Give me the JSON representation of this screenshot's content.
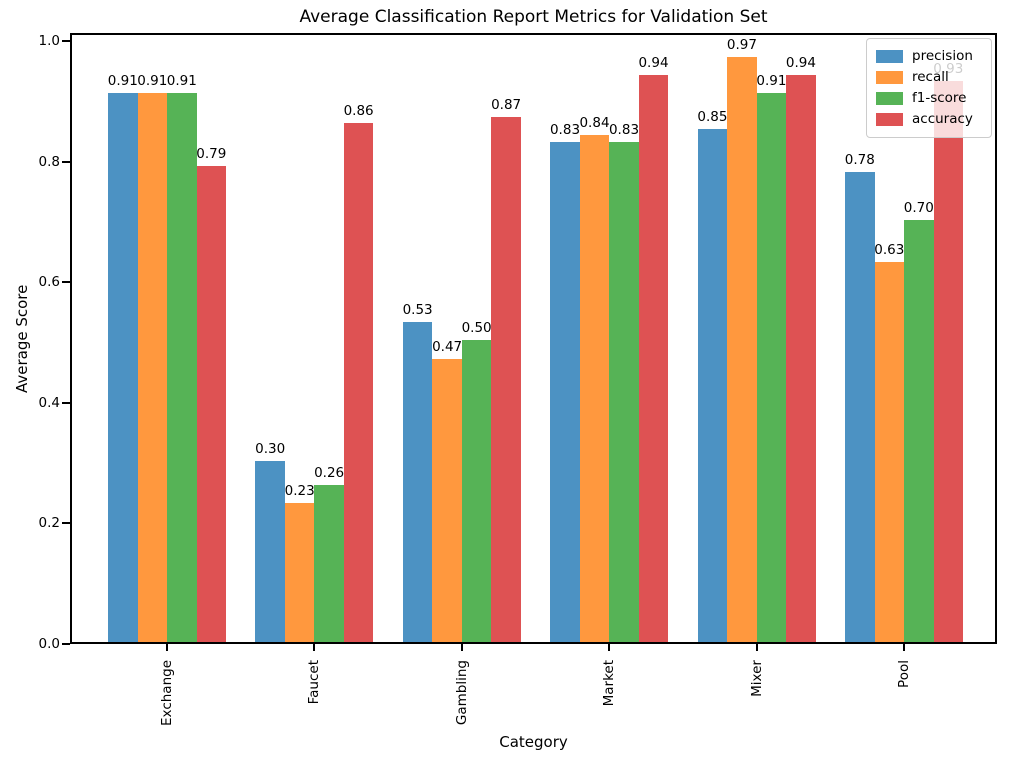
{
  "chart_data": {
    "type": "bar",
    "title": "Average Classification Report Metrics for Validation Set",
    "xlabel": "Category",
    "ylabel": "Average Score",
    "categories": [
      "Exchange",
      "Faucet",
      "Gambling",
      "Market",
      "Mixer",
      "Pool"
    ],
    "series": [
      {
        "name": "precision",
        "color": "#4C92C3",
        "values": [
          0.91,
          0.3,
          0.53,
          0.83,
          0.85,
          0.78
        ]
      },
      {
        "name": "recall",
        "color": "#FF983E",
        "values": [
          0.91,
          0.23,
          0.47,
          0.84,
          0.97,
          0.63
        ]
      },
      {
        "name": "f1-score",
        "color": "#56B356",
        "values": [
          0.91,
          0.26,
          0.5,
          0.83,
          0.91,
          0.7
        ]
      },
      {
        "name": "accuracy",
        "color": "#DE5253",
        "values": [
          0.79,
          0.86,
          0.87,
          0.94,
          0.94,
          0.93
        ]
      }
    ],
    "bar_value_labels": [
      [
        "0.91",
        "0.30",
        "0.53",
        "0.83",
        "0.85",
        "0.78"
      ],
      [
        "0.91",
        "0.23",
        "0.47",
        "0.84",
        "0.97",
        "0.63"
      ],
      [
        "0.91",
        "0.26",
        "0.50",
        "0.83",
        "0.91",
        "0.70"
      ],
      [
        "0.79",
        "0.86",
        "0.87",
        "0.94",
        "0.94",
        "0.93"
      ]
    ],
    "yticks": [
      "0.0",
      "0.2",
      "0.4",
      "0.6",
      "0.8",
      "1.0"
    ],
    "ytick_values": [
      0.0,
      0.2,
      0.4,
      0.6,
      0.8,
      1.0
    ],
    "ylim": [
      0.0,
      1.013
    ],
    "grid": false,
    "legend_position": "upper right",
    "axis_color": "#000000",
    "text_color": "#000000"
  }
}
